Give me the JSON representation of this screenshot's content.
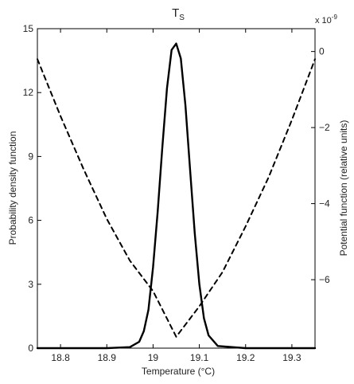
{
  "chart_data": {
    "type": "line",
    "title": "T",
    "title_subscript": "S",
    "xlabel": "Temperature (°C)",
    "ylabel_left": "Probability density function",
    "ylabel_right": "Potential function (relative units)",
    "right_axis_multiplier": "x 10",
    "right_axis_multiplier_exponent": "-9",
    "xlim": [
      18.75,
      19.35
    ],
    "ylim_left": [
      0,
      15
    ],
    "ylim_right": [
      -7.8,
      0.6
    ],
    "x_ticks": [
      {
        "value": 18.8,
        "label": "18.8"
      },
      {
        "value": 18.9,
        "label": "18.9"
      },
      {
        "value": 19.0,
        "label": "19"
      },
      {
        "value": 19.1,
        "label": "19.1"
      },
      {
        "value": 19.2,
        "label": "19.2"
      },
      {
        "value": 19.3,
        "label": "19.3"
      }
    ],
    "y_left_ticks": [
      {
        "value": 0,
        "label": "0"
      },
      {
        "value": 3,
        "label": "3"
      },
      {
        "value": 6,
        "label": "6"
      },
      {
        "value": 9,
        "label": "9"
      },
      {
        "value": 12,
        "label": "12"
      },
      {
        "value": 15,
        "label": "15"
      }
    ],
    "y_right_ticks": [
      {
        "value": 0,
        "label": "0"
      },
      {
        "value": -2,
        "label": "−2"
      },
      {
        "value": -4,
        "label": "−4"
      },
      {
        "value": -6,
        "label": "−6"
      }
    ],
    "grid": false,
    "legend": "none",
    "series": [
      {
        "style": "solid",
        "axis": "left",
        "color": "#000000",
        "x": [
          18.75,
          18.9,
          18.95,
          18.97,
          18.98,
          18.99,
          19.0,
          19.01,
          19.02,
          19.03,
          19.04,
          19.05,
          19.06,
          19.07,
          19.08,
          19.09,
          19.1,
          19.11,
          19.12,
          19.14,
          19.2,
          19.35
        ],
        "y": [
          0,
          0,
          0.05,
          0.3,
          0.8,
          1.8,
          3.8,
          6.4,
          9.4,
          12.2,
          14.0,
          14.3,
          13.6,
          11.4,
          8.4,
          5.4,
          3.0,
          1.4,
          0.6,
          0.1,
          0,
          0
        ]
      },
      {
        "style": "dashed",
        "axis": "right",
        "color": "#000000",
        "x": [
          18.75,
          18.8,
          18.85,
          18.9,
          18.95,
          19.0,
          19.05,
          19.1,
          19.15,
          19.2,
          19.25,
          19.3,
          19.35
        ],
        "y": [
          -0.2,
          -1.7,
          -3.1,
          -4.4,
          -5.5,
          -6.3,
          -7.5,
          -6.7,
          -5.8,
          -4.6,
          -3.3,
          -1.8,
          -0.2
        ]
      }
    ]
  }
}
